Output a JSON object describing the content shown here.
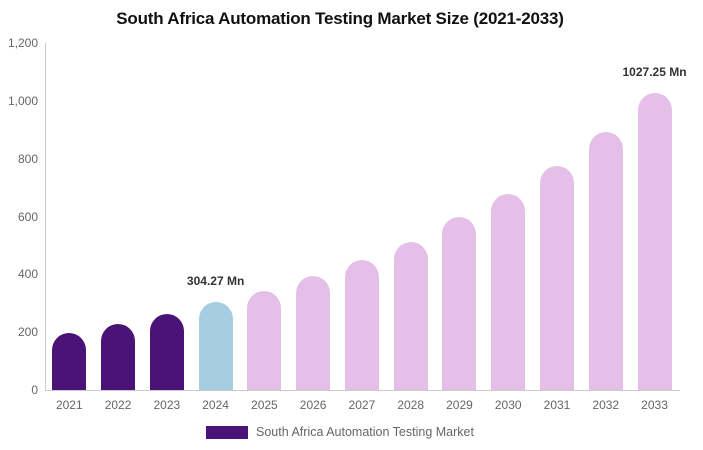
{
  "title": "South Africa Automation Testing Market Size (2021-2033)",
  "legend": {
    "label": "South Africa Automation Testing Market",
    "swatch_color": "#491377"
  },
  "colors": {
    "historical": "#491377",
    "current": "#a5cce1",
    "forecast": "#e6bfe8",
    "axis_line": "#cccccc",
    "tick_text": "#666666",
    "annotation_text": "#333333"
  },
  "chart_data": {
    "type": "bar",
    "title": "South Africa Automation Testing Market Size (2021-2033)",
    "unit": "Mn",
    "xlabel": "",
    "ylabel": "",
    "ylim": [
      0,
      1200
    ],
    "grid": false,
    "legend_position": "bottom",
    "y_ticks": [
      {
        "value": 0,
        "label": "0"
      },
      {
        "value": 200,
        "label": "200"
      },
      {
        "value": 400,
        "label": "400"
      },
      {
        "value": 600,
        "label": "600"
      },
      {
        "value": 800,
        "label": "800"
      },
      {
        "value": 1000,
        "label": "1,000"
      },
      {
        "value": 1200,
        "label": "1,200"
      }
    ],
    "points": [
      {
        "year": "2021",
        "value": 198,
        "role": "historical",
        "label": ""
      },
      {
        "year": "2022",
        "value": 229,
        "role": "historical",
        "label": ""
      },
      {
        "year": "2023",
        "value": 263,
        "role": "historical",
        "label": ""
      },
      {
        "year": "2024",
        "value": 304.27,
        "role": "current",
        "label": "304.27 Mn"
      },
      {
        "year": "2025",
        "value": 343,
        "role": "forecast",
        "label": ""
      },
      {
        "year": "2026",
        "value": 395,
        "role": "forecast",
        "label": ""
      },
      {
        "year": "2027",
        "value": 448,
        "role": "forecast",
        "label": ""
      },
      {
        "year": "2028",
        "value": 511,
        "role": "forecast",
        "label": ""
      },
      {
        "year": "2029",
        "value": 598,
        "role": "forecast",
        "label": ""
      },
      {
        "year": "2030",
        "value": 677,
        "role": "forecast",
        "label": ""
      },
      {
        "year": "2031",
        "value": 776,
        "role": "forecast",
        "label": ""
      },
      {
        "year": "2032",
        "value": 891,
        "role": "forecast",
        "label": ""
      },
      {
        "year": "2033",
        "value": 1027.25,
        "role": "forecast",
        "label": "1027.25 Mn"
      }
    ]
  }
}
